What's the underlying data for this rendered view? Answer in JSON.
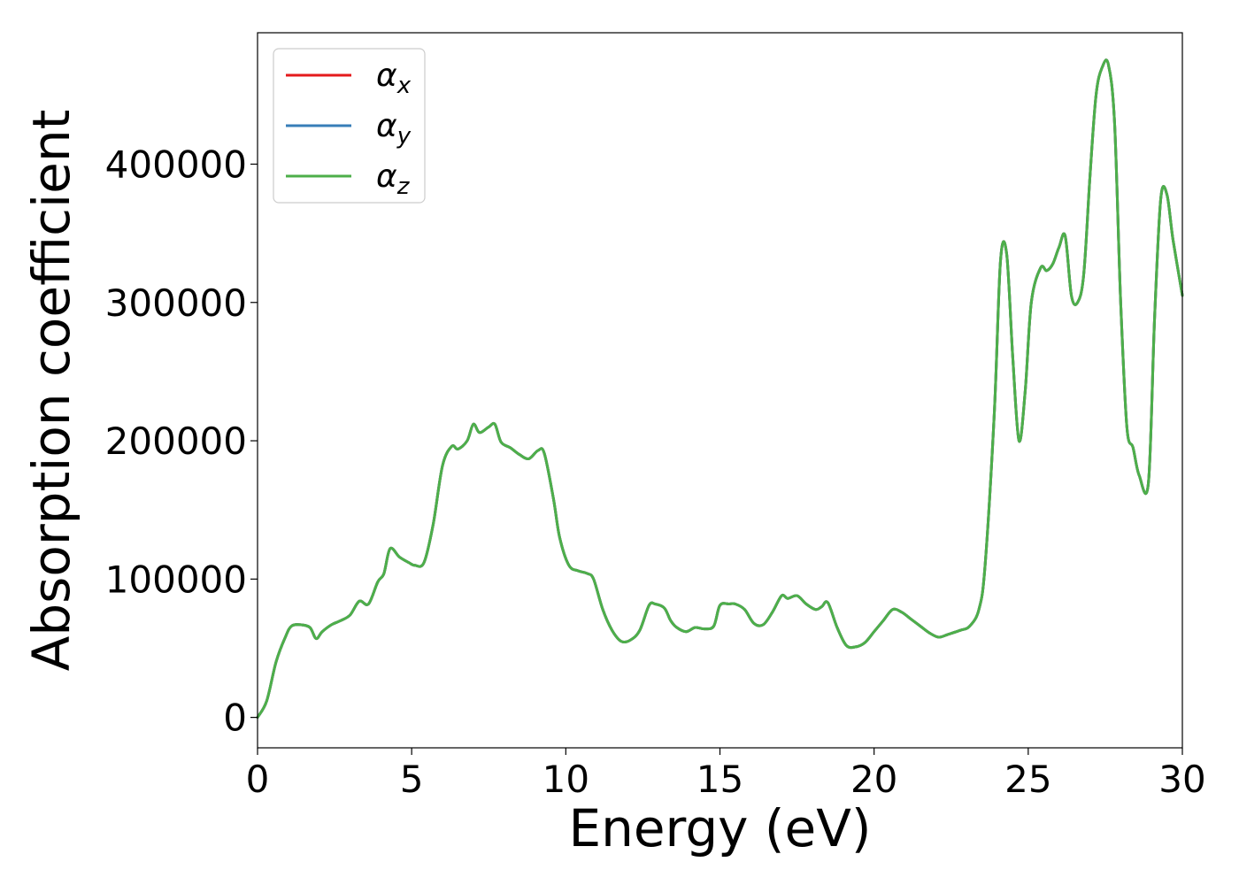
{
  "chart_data": {
    "type": "line",
    "title": "",
    "xlabel": "Energy (eV)",
    "ylabel": "Absorption coefficient",
    "xlim": [
      0,
      30
    ],
    "ylim": [
      -22000,
      495000
    ],
    "xticks": [
      0,
      5,
      10,
      15,
      20,
      25,
      30
    ],
    "yticks": [
      0,
      100000,
      200000,
      300000,
      400000
    ],
    "xtick_labels": [
      "0",
      "5",
      "10",
      "15",
      "20",
      "25",
      "30"
    ],
    "ytick_labels": [
      "0",
      "100000",
      "200000",
      "300000",
      "400000"
    ],
    "grid": false,
    "legend_position": "top-left",
    "legend": [
      {
        "base": "α",
        "sub": "x",
        "color": "#e41a1c"
      },
      {
        "base": "α",
        "sub": "y",
        "color": "#377eb8"
      },
      {
        "base": "α",
        "sub": "z",
        "color": "#4daf4a"
      }
    ],
    "x": [
      0,
      0.3,
      0.6,
      0.9,
      1.1,
      1.4,
      1.7,
      1.9,
      2.1,
      2.4,
      2.7,
      3.0,
      3.3,
      3.6,
      3.9,
      4.1,
      4.3,
      4.6,
      4.9,
      5.1,
      5.4,
      5.7,
      6.0,
      6.3,
      6.5,
      6.8,
      7.0,
      7.2,
      7.5,
      7.7,
      7.9,
      8.2,
      8.5,
      8.8,
      9.1,
      9.3,
      9.6,
      9.8,
      10.1,
      10.4,
      10.7,
      10.9,
      11.2,
      11.5,
      11.8,
      12.1,
      12.4,
      12.7,
      12.9,
      13.2,
      13.4,
      13.6,
      13.9,
      14.2,
      14.5,
      14.8,
      15.0,
      15.3,
      15.5,
      15.8,
      16.1,
      16.4,
      16.7,
      17.0,
      17.2,
      17.5,
      17.8,
      18.1,
      18.3,
      18.5,
      18.8,
      19.1,
      19.4,
      19.7,
      20.0,
      20.3,
      20.6,
      20.9,
      21.2,
      21.5,
      21.8,
      22.1,
      22.4,
      22.8,
      23.1,
      23.4,
      23.6,
      23.9,
      24.1,
      24.3,
      24.5,
      24.7,
      24.9,
      25.1,
      25.4,
      25.6,
      25.8,
      26.0,
      26.2,
      26.4,
      26.6,
      26.8,
      27.0,
      27.2,
      27.4,
      27.6,
      27.8,
      28.0,
      28.2,
      28.4,
      28.6,
      28.9,
      29.1,
      29.3,
      29.5,
      29.7,
      30.0
    ],
    "series": [
      {
        "name": "αx",
        "color": "#e41a1c",
        "values": [
          0,
          12000,
          40000,
          58000,
          66000,
          67000,
          65000,
          57000,
          62000,
          67000,
          70000,
          74000,
          84000,
          82000,
          98000,
          104000,
          122000,
          116000,
          112000,
          110000,
          112000,
          140000,
          182000,
          196000,
          194000,
          200000,
          212000,
          206000,
          210000,
          212000,
          199000,
          195000,
          190000,
          187000,
          193000,
          191000,
          158000,
          130000,
          110000,
          106000,
          104000,
          100000,
          78000,
          63000,
          55000,
          56000,
          63000,
          81000,
          82000,
          79000,
          70000,
          65000,
          62000,
          65000,
          64000,
          66000,
          81000,
          82000,
          82000,
          78000,
          68000,
          67000,
          76000,
          88000,
          86000,
          88000,
          82000,
          78000,
          80000,
          83000,
          65000,
          52000,
          51000,
          54000,
          62000,
          70000,
          78000,
          76000,
          71000,
          66000,
          61000,
          58000,
          60000,
          63000,
          66000,
          78000,
          110000,
          220000,
          330000,
          335000,
          260000,
          200000,
          235000,
          300000,
          325000,
          323000,
          328000,
          340000,
          348000,
          305000,
          300000,
          320000,
          390000,
          450000,
          470000,
          472000,
          430000,
          300000,
          210000,
          195000,
          175000,
          170000,
          290000,
          375000,
          378000,
          345000,
          305000
        ]
      },
      {
        "name": "αy",
        "color": "#377eb8",
        "values": [
          0,
          12000,
          40000,
          58000,
          66000,
          67000,
          65000,
          57000,
          62000,
          67000,
          70000,
          74000,
          84000,
          82000,
          98000,
          104000,
          122000,
          116000,
          112000,
          110000,
          112000,
          140000,
          182000,
          196000,
          194000,
          200000,
          212000,
          206000,
          210000,
          212000,
          199000,
          195000,
          190000,
          187000,
          193000,
          191000,
          158000,
          130000,
          110000,
          106000,
          104000,
          100000,
          78000,
          63000,
          55000,
          56000,
          63000,
          81000,
          82000,
          79000,
          70000,
          65000,
          62000,
          65000,
          64000,
          66000,
          81000,
          82000,
          82000,
          78000,
          68000,
          67000,
          76000,
          88000,
          86000,
          88000,
          82000,
          78000,
          80000,
          83000,
          65000,
          52000,
          51000,
          54000,
          62000,
          70000,
          78000,
          76000,
          71000,
          66000,
          61000,
          58000,
          60000,
          63000,
          66000,
          78000,
          110000,
          220000,
          330000,
          335000,
          260000,
          200000,
          235000,
          300000,
          325000,
          323000,
          328000,
          340000,
          348000,
          305000,
          300000,
          320000,
          390000,
          450000,
          470000,
          472000,
          430000,
          300000,
          210000,
          195000,
          175000,
          170000,
          290000,
          375000,
          378000,
          345000,
          305000
        ]
      },
      {
        "name": "αz",
        "color": "#4daf4a",
        "values": [
          0,
          12000,
          40000,
          58000,
          66000,
          67000,
          65000,
          57000,
          62000,
          67000,
          70000,
          74000,
          84000,
          82000,
          98000,
          104000,
          122000,
          116000,
          112000,
          110000,
          112000,
          140000,
          182000,
          196000,
          194000,
          200000,
          212000,
          206000,
          210000,
          212000,
          199000,
          195000,
          190000,
          187000,
          193000,
          191000,
          158000,
          130000,
          110000,
          106000,
          104000,
          100000,
          78000,
          63000,
          55000,
          56000,
          63000,
          81000,
          82000,
          79000,
          70000,
          65000,
          62000,
          65000,
          64000,
          66000,
          81000,
          82000,
          82000,
          78000,
          68000,
          67000,
          76000,
          88000,
          86000,
          88000,
          82000,
          78000,
          80000,
          83000,
          65000,
          52000,
          51000,
          54000,
          62000,
          70000,
          78000,
          76000,
          71000,
          66000,
          61000,
          58000,
          60000,
          63000,
          66000,
          78000,
          110000,
          220000,
          330000,
          335000,
          260000,
          200000,
          235000,
          300000,
          325000,
          323000,
          328000,
          340000,
          348000,
          305000,
          300000,
          320000,
          390000,
          450000,
          470000,
          472000,
          430000,
          300000,
          210000,
          195000,
          175000,
          170000,
          290000,
          375000,
          378000,
          345000,
          305000
        ]
      }
    ]
  }
}
